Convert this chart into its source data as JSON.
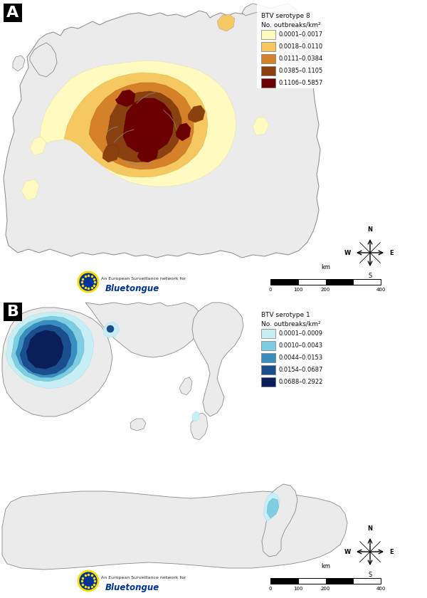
{
  "panel_A": {
    "label": "A",
    "title_line1": "BTV serotype 8",
    "title_line2": "No. outbreaks/km²",
    "legend_colors": [
      "#FFFBC0",
      "#F5C862",
      "#D4812A",
      "#8B4010",
      "#6B0000"
    ],
    "legend_labels": [
      "0.0001–0.0017",
      "0.0018–0.0110",
      "0.0111–0.0384",
      "0.0385–0.1105",
      "0.1106–0.5857"
    ],
    "bg_color": "#FFFFFF",
    "land_color": "#F2F2F2",
    "sea_color": "#FFFFFF",
    "border_color": "#888888"
  },
  "panel_B": {
    "label": "B",
    "title_line1": "BTV serotype 1",
    "title_line2": "No. outbreaks/km²",
    "legend_colors": [
      "#C8EEF5",
      "#7ECDE0",
      "#3A8DC0",
      "#1A4E8C",
      "#0A1E5C"
    ],
    "legend_labels": [
      "0.0001–0.0009",
      "0.0010–0.0043",
      "0.0044–0.0153",
      "0.0154–0.0687",
      "0.0688–0.2922"
    ],
    "bg_color": "#FFFFFF",
    "land_color": "#F2F2F2",
    "sea_color": "#FFFFFF",
    "border_color": "#888888"
  },
  "logo_text": "An European Surveillance network for",
  "logo_brand": "Bluetongue",
  "scale_km": "km",
  "figure_bg": "#FFFFFF"
}
